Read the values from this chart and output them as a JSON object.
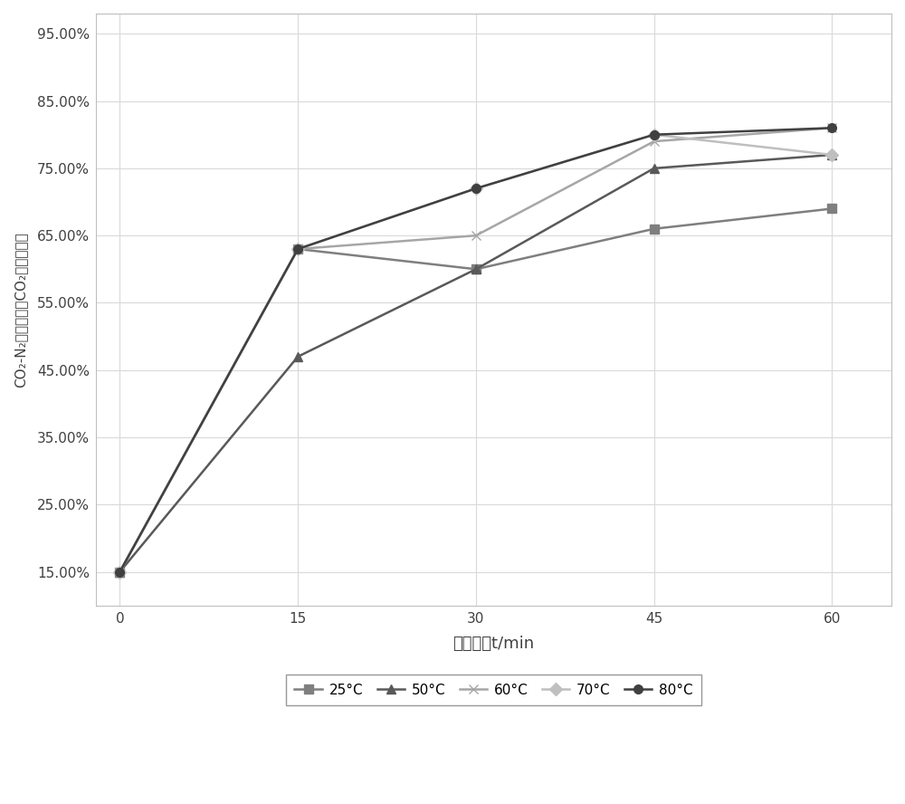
{
  "x": [
    0,
    15,
    30,
    45,
    60
  ],
  "series": {
    "25°C": [
      0.15,
      0.63,
      0.6,
      0.66,
      0.69
    ],
    "50°C": [
      0.15,
      0.47,
      0.6,
      0.75,
      0.77
    ],
    "60°C": [
      0.15,
      0.63,
      0.65,
      0.79,
      0.81
    ],
    "70°C": [
      0.15,
      0.63,
      0.72,
      0.8,
      0.77
    ],
    "80°C": [
      0.15,
      0.63,
      0.72,
      0.8,
      0.81
    ]
  },
  "colors": {
    "25°C": "#7f7f7f",
    "50°C": "#595959",
    "60°C": "#a6a6a6",
    "70°C": "#bfbfbf",
    "80°C": "#404040"
  },
  "markers": {
    "25°C": "s",
    "50°C": "^",
    "60°C": "x",
    "70°C": "D",
    "80°C": "o"
  },
  "xlabel": "分离时间t/min",
  "ylabel": "CO₂-N₂混合气体中CO₂浓度百分比",
  "yticks": [
    0.15,
    0.25,
    0.35,
    0.45,
    0.55,
    0.65,
    0.75,
    0.85,
    0.95
  ],
  "ytick_labels": [
    "15.00%",
    "25.00%",
    "35.00%",
    "45.00%",
    "55.00%",
    "65.00%",
    "75.00%",
    "85.00%",
    "95.00%"
  ],
  "xticks": [
    0,
    15,
    30,
    45,
    60
  ],
  "ylim": [
    0.1,
    0.98
  ],
  "xlim": [
    -2,
    65
  ],
  "plot_bg": "#ffffff",
  "fig_bg": "#ffffff",
  "grid_color": "#d9d9d9",
  "legend_labels": [
    "25°C",
    "50°C",
    "60°C",
    "70°C",
    "80°C"
  ],
  "legend_border_color": "#7f7f7f",
  "spine_color": "#bfbfbf"
}
